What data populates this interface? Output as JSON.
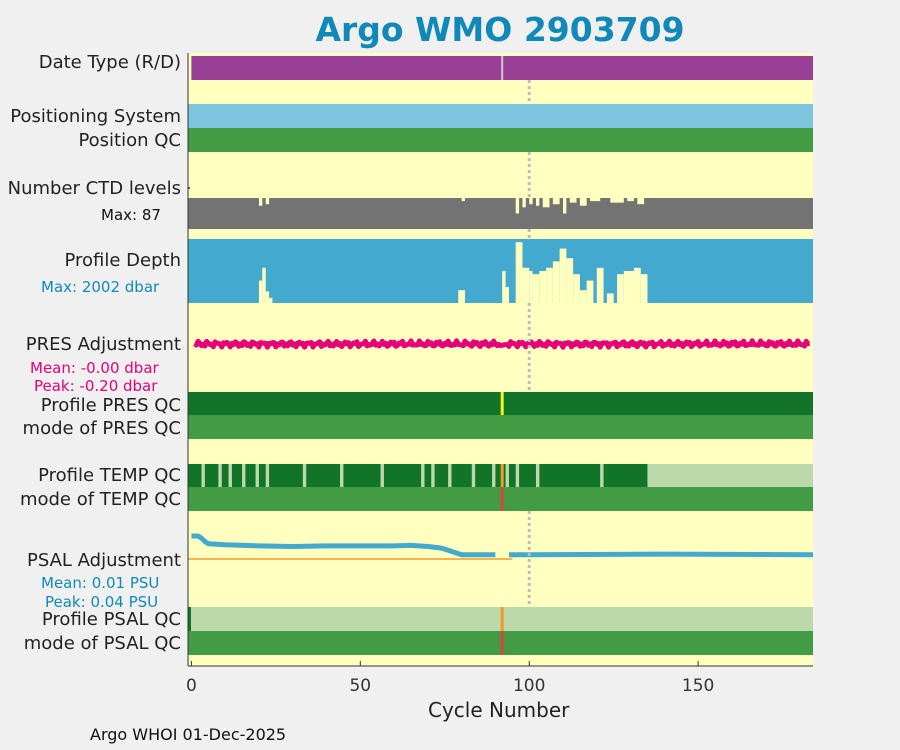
{
  "title": "Argo WMO 2903709",
  "footer": "Argo WHOI 01-Dec-2025",
  "rows": {
    "date_type": "Date Type (R/D)",
    "positioning": "Positioning System",
    "position_qc": "Position QC",
    "ctd_levels": "Number CTD levels",
    "ctd_max": "Max: 87",
    "profile_depth": "Profile Depth",
    "depth_max": "Max: 2002 dbar",
    "pres_adj": "PRES Adjustment",
    "pres_mean": "Mean: -0.00 dbar",
    "pres_peak": "Peak: -0.20 dbar",
    "profile_pres_qc": "Profile PRES QC",
    "mode_pres_qc": "mode of PRES QC",
    "profile_temp_qc": "Profile TEMP QC",
    "mode_temp_qc": "mode of TEMP QC",
    "psal_adj": "PSAL Adjustment",
    "psal_mean": "Mean: 0.01 PSU",
    "psal_peak": "Peak: 0.04 PSU",
    "profile_psal_qc": "Profile PSAL QC",
    "mode_psal_qc": "mode of PSAL QC"
  },
  "colors": {
    "background": "#ffffc0",
    "date_type": "#993f96",
    "positioning": "#7ec6e0",
    "qc_good": "#439b43",
    "qc_dark": "#117428",
    "qc_light": "#bcd9ab",
    "ctd": "#737373",
    "depth": "#43a9ce",
    "pres": "#e6007a",
    "psal": "#43a9ce",
    "flag_yellow": "#f5f51e",
    "flag_orange": "#f29c27",
    "flag_red": "#d9453f",
    "title": "#1089b9"
  },
  "chart_data": {
    "type": "qc_timeline",
    "xlabel": "Cycle Number",
    "xlim": [
      -1,
      184
    ],
    "xticks": [
      0,
      50,
      100,
      150
    ],
    "cycles": 184,
    "vline_cycle": 100,
    "date_type_marker_cycle": 92,
    "ctd_levels_max": 87,
    "profile_depth_max_dbar": 2002,
    "pres_adjustment": {
      "mean": -0.0,
      "peak": -0.2,
      "unit": "dbar"
    },
    "psal_adjustment": {
      "mean": 0.01,
      "peak": 0.04,
      "unit": "PSU",
      "x": [
        0,
        2,
        3,
        4,
        5,
        10,
        20,
        30,
        40,
        50,
        60,
        65,
        70,
        74,
        76,
        78,
        79,
        80,
        90,
        92,
        94,
        100,
        140,
        184
      ],
      "values": [
        0.04,
        0.04,
        0.036,
        0.03,
        0.026,
        0.024,
        0.022,
        0.021,
        0.022,
        0.022,
        0.022,
        0.023,
        0.021,
        0.018,
        0.014,
        0.01,
        0.008,
        0.006,
        0.006,
        null,
        0.006,
        0.006,
        0.007,
        0.006
      ]
    },
    "temp_qc_light_bands": [
      [
        3,
        4
      ],
      [
        8,
        9
      ],
      [
        11,
        12
      ],
      [
        15,
        16
      ],
      [
        19,
        20
      ],
      [
        22,
        23
      ],
      [
        33,
        34
      ],
      [
        44,
        45
      ],
      [
        56,
        57
      ],
      [
        68,
        69
      ],
      [
        71,
        72
      ],
      [
        76,
        77
      ],
      [
        83,
        84
      ],
      [
        89,
        90
      ],
      [
        93,
        94
      ],
      [
        96,
        97
      ],
      [
        102,
        103
      ],
      [
        121,
        122
      ],
      [
        135,
        184
      ]
    ],
    "temp_qc_flag_cycle": 92,
    "pres_qc_flag_cycle": 92,
    "psal_qc_flag_cycle": 92,
    "ctd_dips": [
      [
        20,
        21,
        0.75
      ],
      [
        22,
        23,
        0.8
      ],
      [
        80,
        81,
        0.9
      ],
      [
        96,
        97,
        0.5
      ],
      [
        98,
        99,
        0.7
      ],
      [
        100,
        101,
        0.8
      ],
      [
        102,
        103,
        0.75
      ],
      [
        104,
        106,
        0.7
      ],
      [
        107,
        109,
        0.8
      ],
      [
        110,
        111,
        0.5
      ],
      [
        112,
        114,
        0.85
      ],
      [
        115,
        117,
        0.75
      ],
      [
        118,
        121,
        0.9
      ],
      [
        124,
        128,
        0.85
      ],
      [
        129,
        131,
        0.9
      ],
      [
        132,
        134,
        0.8
      ]
    ],
    "depth_bumps": [
      [
        20,
        21,
        0.35
      ],
      [
        21,
        22,
        0.55
      ],
      [
        22,
        23,
        0.18
      ],
      [
        23,
        24,
        0.08
      ],
      [
        79,
        81,
        0.2
      ],
      [
        92,
        93,
        0.5
      ],
      [
        93,
        94,
        0.25
      ],
      [
        96,
        98,
        0.95
      ],
      [
        98,
        100,
        0.55
      ],
      [
        100,
        101,
        0.5
      ],
      [
        101,
        103,
        0.45
      ],
      [
        103,
        105,
        0.5
      ],
      [
        105,
        107,
        0.55
      ],
      [
        107,
        109,
        0.65
      ],
      [
        109,
        111,
        0.85
      ],
      [
        111,
        113,
        0.7
      ],
      [
        113,
        115,
        0.45
      ],
      [
        115,
        117,
        0.2
      ],
      [
        117,
        119,
        0.35
      ],
      [
        120,
        122,
        0.55
      ],
      [
        123,
        125,
        0.15
      ],
      [
        126,
        128,
        0.45
      ],
      [
        128,
        131,
        0.5
      ],
      [
        131,
        133,
        0.55
      ],
      [
        133,
        135,
        0.45
      ]
    ]
  }
}
